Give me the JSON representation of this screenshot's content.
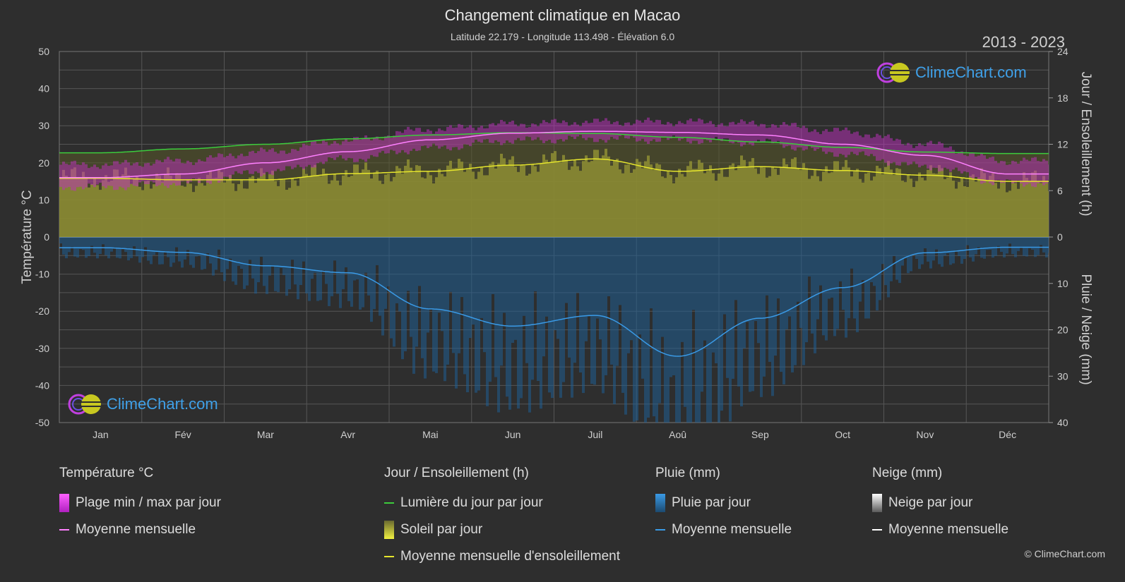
{
  "title": "Changement climatique en Macao",
  "subtitle": "Latitude 22.179 - Longitude 113.498 - Élévation 6.0",
  "years": "2013 - 2023",
  "axes": {
    "left_title": "Température °C",
    "right_top_title": "Jour / Ensoleillement (h)",
    "right_bottom_title": "Pluie / Neige (mm)",
    "left_ticks": [
      "50",
      "40",
      "30",
      "20",
      "10",
      "0",
      "-10",
      "-20",
      "-30",
      "-40",
      "-50"
    ],
    "right_top_ticks": [
      "24",
      "18",
      "12",
      "6",
      "0"
    ],
    "right_bottom_ticks": [
      "10",
      "20",
      "30",
      "40"
    ]
  },
  "logo_text": "ClimeChart.com",
  "copyright": "© ClimeChart.com",
  "colors": {
    "background": "#2e2e2e",
    "temp_range": "#e040e0",
    "temp_mean": "#ff80ff",
    "daylight": "#3ccc3c",
    "sunshine_fill": "#a8a83a",
    "sunshine_mean": "#e6e62c",
    "rain": "#2a78b8",
    "rain_mean": "#3a9ae6",
    "snow": "#ffffff"
  },
  "chart_data": {
    "type": "line",
    "categories": [
      "Jan",
      "Fév",
      "Mar",
      "Avr",
      "Mai",
      "Jun",
      "Juil",
      "Aoû",
      "Sep",
      "Oct",
      "Nov",
      "Déc"
    ],
    "temp_ylim": [
      -50,
      50
    ],
    "sun_ylim": [
      0,
      24
    ],
    "rain_ylim": [
      0,
      40
    ],
    "series": [
      {
        "name": "Moyenne mensuelle",
        "group": "temperature",
        "unit": "°C",
        "values": [
          16.0,
          17.0,
          20.0,
          23.0,
          26.2,
          28.0,
          28.5,
          28.2,
          27.5,
          25.0,
          22.0,
          17.0
        ]
      },
      {
        "name": "Plage min / max par jour",
        "group": "temperature_range",
        "unit": "°C",
        "min": [
          13.5,
          14.5,
          17.5,
          21.0,
          24.0,
          26.0,
          26.5,
          26.2,
          25.5,
          22.5,
          19.0,
          14.5
        ],
        "max": [
          19.5,
          20.5,
          23.0,
          26.0,
          29.0,
          30.5,
          31.0,
          31.0,
          30.5,
          28.5,
          25.0,
          20.5
        ]
      },
      {
        "name": "Lumière du jour par jour",
        "group": "daylight",
        "unit": "h",
        "values": [
          10.9,
          11.4,
          12.0,
          12.7,
          13.2,
          13.5,
          13.4,
          12.9,
          12.3,
          11.6,
          11.0,
          10.8
        ]
      },
      {
        "name": "Moyenne mensuelle d'ensoleillement",
        "group": "sunshine",
        "unit": "h",
        "values": [
          7.6,
          7.4,
          7.4,
          8.2,
          8.5,
          9.3,
          10.1,
          8.5,
          9.1,
          8.6,
          8.0,
          7.2
        ]
      },
      {
        "name": "Moyenne mensuelle",
        "group": "rain",
        "unit": "mm",
        "values": [
          2.3,
          3.3,
          6.2,
          7.7,
          15.5,
          19.2,
          16.9,
          25.7,
          17.5,
          10.9,
          3.4,
          2.2
        ]
      },
      {
        "name": "Moyenne mensuelle",
        "group": "snow",
        "unit": "mm",
        "values": [
          0,
          0,
          0,
          0,
          0,
          0,
          0,
          0,
          0,
          0,
          0,
          0
        ]
      }
    ]
  },
  "legend": {
    "temperature": {
      "title": "Température °C",
      "items": [
        "Plage min / max par jour",
        "Moyenne mensuelle"
      ]
    },
    "sun": {
      "title": "Jour / Ensoleillement (h)",
      "items": [
        "Lumière du jour par jour",
        "Soleil par jour",
        "Moyenne mensuelle d'ensoleillement"
      ]
    },
    "rain": {
      "title": "Pluie (mm)",
      "items": [
        "Pluie par jour",
        "Moyenne mensuelle"
      ]
    },
    "snow": {
      "title": "Neige (mm)",
      "items": [
        "Neige par jour",
        "Moyenne mensuelle"
      ]
    }
  }
}
